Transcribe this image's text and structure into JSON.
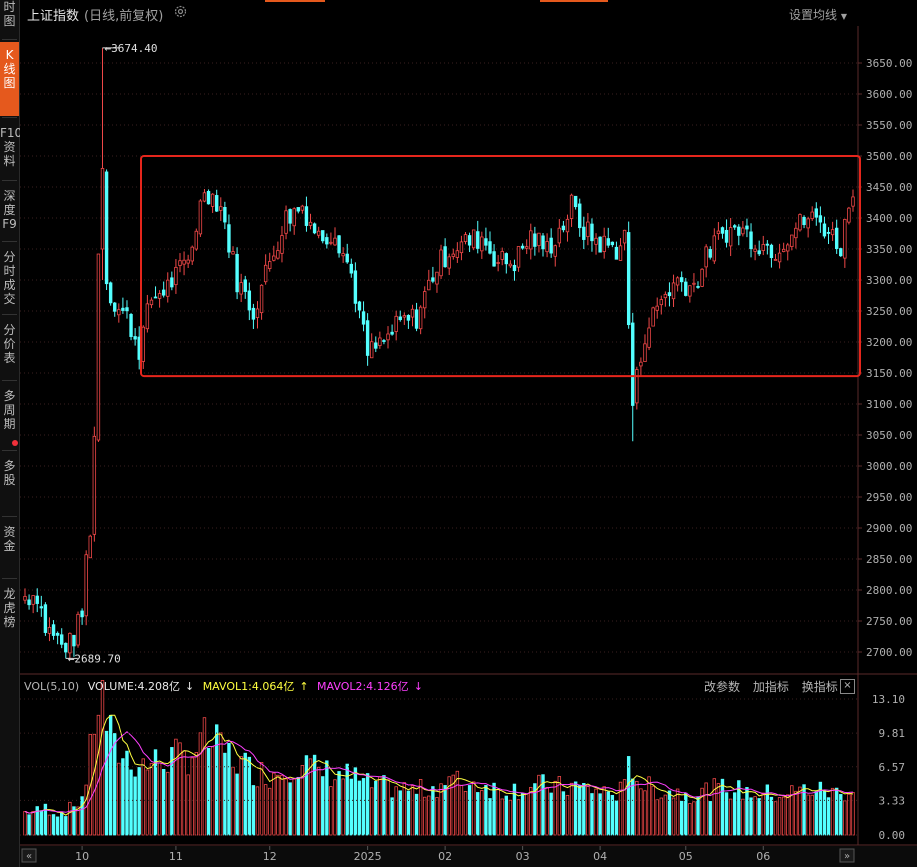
{
  "sidebar": {
    "items": [
      {
        "label": "时\n图",
        "active": false
      },
      {
        "label": "K\n线\n图",
        "active": true
      },
      {
        "label": "F10\n资\n料",
        "active": false
      },
      {
        "label": "深\n度\nF9",
        "active": false
      },
      {
        "label": "分\n时\n成\n交",
        "active": false
      },
      {
        "label": "分\n价\n表",
        "active": false
      },
      {
        "label": "多\n周\n期",
        "active": false
      },
      {
        "label": "多\n股",
        "active": false
      },
      {
        "label": "资\n金",
        "active": false
      },
      {
        "label": "龙\n虎\n榜",
        "active": false
      }
    ]
  },
  "header": {
    "title": "上证指数",
    "subtitle": "(日线,前复权)",
    "settings_icon": "gear-icon",
    "ma_setting_label": "设置均线"
  },
  "volume_panel": {
    "indicator": "VOL(5,10)",
    "volume": {
      "label": "VOLUME:4.208亿",
      "arrow": "↓"
    },
    "mavol1": {
      "label": "MAVOL1:4.064亿",
      "arrow": "↑"
    },
    "mavol2": {
      "label": "MAVOL2:4.126亿",
      "arrow": "↓"
    },
    "tools": [
      "改参数",
      "加指标",
      "换指标"
    ],
    "close_label": "×"
  },
  "annotations": {
    "high_label": "3674.40",
    "low_label": "2689.70",
    "range_box": {
      "top": 3500,
      "bottom": 3145
    }
  },
  "colors": {
    "up": "#f04848",
    "down": "#54ffff",
    "mavol1": "#ffff40",
    "mavol2": "#ff40ff",
    "box": "#e6261c",
    "grid": "#3a2020",
    "axis_text": "#b0b0b0"
  },
  "chart_data": {
    "type": "candlestick",
    "price_axis": {
      "ticks": [
        2700,
        2750,
        2800,
        2850,
        2900,
        2950,
        3000,
        3050,
        3100,
        3150,
        3200,
        3250,
        3300,
        3350,
        3400,
        3450,
        3500,
        3550,
        3600,
        3650
      ],
      "ylim": [
        2660,
        3720
      ]
    },
    "volume_axis": {
      "ticks": [
        "0.00",
        "3.33",
        "6.57",
        "9.81",
        "13.10"
      ],
      "ylim": [
        0,
        13.1
      ]
    },
    "x_axis": {
      "labels": [
        "10",
        "11",
        "12",
        "2025",
        "02",
        "03",
        "04",
        "05",
        "06"
      ]
    },
    "anchors": [
      {
        "i": 0,
        "p": 2790,
        "v": 2.2
      },
      {
        "i": 3,
        "p": 2795,
        "v": 2.3
      },
      {
        "i": 5,
        "p": 2740,
        "v": 2.6
      },
      {
        "i": 8,
        "p": 2720,
        "v": 2.1
      },
      {
        "i": 10,
        "p": 2700,
        "v": 2.3
      },
      {
        "i": 12,
        "p": 2725,
        "v": 2.8
      },
      {
        "i": 14,
        "p": 2760,
        "v": 3.6
      },
      {
        "i": 15,
        "p": 2850,
        "v": 5.4
      },
      {
        "i": 16,
        "p": 2900,
        "v": 7.8
      },
      {
        "i": 17,
        "p": 3050,
        "v": 11.2
      },
      {
        "i": 18,
        "p": 3340,
        "v": 12.6
      },
      {
        "i": 19,
        "p": 3480,
        "v": 13.1
      },
      {
        "i": 20,
        "p": 3300,
        "v": 10.8
      },
      {
        "i": 22,
        "p": 3260,
        "v": 8.2
      },
      {
        "i": 25,
        "p": 3240,
        "v": 7.5
      },
      {
        "i": 28,
        "p": 3190,
        "v": 6.8
      },
      {
        "i": 31,
        "p": 3270,
        "v": 6.9
      },
      {
        "i": 35,
        "p": 3290,
        "v": 7.4
      },
      {
        "i": 40,
        "p": 3330,
        "v": 7.6
      },
      {
        "i": 44,
        "p": 3450,
        "v": 9.2
      },
      {
        "i": 48,
        "p": 3420,
        "v": 8.3
      },
      {
        "i": 52,
        "p": 3300,
        "v": 7.1
      },
      {
        "i": 56,
        "p": 3250,
        "v": 6.2
      },
      {
        "i": 60,
        "p": 3330,
        "v": 5.8
      },
      {
        "i": 64,
        "p": 3400,
        "v": 6.6
      },
      {
        "i": 68,
        "p": 3420,
        "v": 7.0
      },
      {
        "i": 72,
        "p": 3370,
        "v": 6.1
      },
      {
        "i": 76,
        "p": 3380,
        "v": 5.9
      },
      {
        "i": 80,
        "p": 3310,
        "v": 5.6
      },
      {
        "i": 84,
        "p": 3180,
        "v": 4.8
      },
      {
        "i": 88,
        "p": 3200,
        "v": 4.6
      },
      {
        "i": 92,
        "p": 3230,
        "v": 4.5
      },
      {
        "i": 96,
        "p": 3240,
        "v": 4.2
      },
      {
        "i": 100,
        "p": 3310,
        "v": 4.6
      },
      {
        "i": 104,
        "p": 3350,
        "v": 5.2
      },
      {
        "i": 108,
        "p": 3360,
        "v": 5.0
      },
      {
        "i": 112,
        "p": 3370,
        "v": 4.9
      },
      {
        "i": 116,
        "p": 3330,
        "v": 4.3
      },
      {
        "i": 120,
        "p": 3330,
        "v": 4.4
      },
      {
        "i": 124,
        "p": 3370,
        "v": 4.6
      },
      {
        "i": 128,
        "p": 3350,
        "v": 4.8
      },
      {
        "i": 132,
        "p": 3390,
        "v": 4.5
      },
      {
        "i": 134,
        "p": 3420,
        "v": 4.7
      },
      {
        "i": 137,
        "p": 3380,
        "v": 4.5
      },
      {
        "i": 141,
        "p": 3360,
        "v": 4.2
      },
      {
        "i": 145,
        "p": 3350,
        "v": 4.0
      },
      {
        "i": 147,
        "p": 3370,
        "v": 4.4
      },
      {
        "i": 148,
        "p": 3230,
        "v": 6.4
      },
      {
        "i": 149,
        "p": 3100,
        "v": 6.8
      },
      {
        "i": 150,
        "p": 3140,
        "v": 5.6
      },
      {
        "i": 152,
        "p": 3215,
        "v": 4.6
      },
      {
        "i": 156,
        "p": 3270,
        "v": 4.3
      },
      {
        "i": 160,
        "p": 3300,
        "v": 4.1
      },
      {
        "i": 164,
        "p": 3290,
        "v": 4.0
      },
      {
        "i": 168,
        "p": 3350,
        "v": 4.3
      },
      {
        "i": 172,
        "p": 3380,
        "v": 4.5
      },
      {
        "i": 176,
        "p": 3380,
        "v": 4.2
      },
      {
        "i": 180,
        "p": 3360,
        "v": 4.0
      },
      {
        "i": 184,
        "p": 3350,
        "v": 3.9
      },
      {
        "i": 188,
        "p": 3380,
        "v": 4.1
      },
      {
        "i": 192,
        "p": 3400,
        "v": 4.4
      },
      {
        "i": 195,
        "p": 3395,
        "v": 4.3
      },
      {
        "i": 198,
        "p": 3370,
        "v": 4.1
      },
      {
        "i": 200,
        "p": 3355,
        "v": 4.0
      },
      {
        "i": 202,
        "p": 3420,
        "v": 4.4
      },
      {
        "i": 203,
        "p": 3454,
        "v": 4.2
      }
    ]
  }
}
